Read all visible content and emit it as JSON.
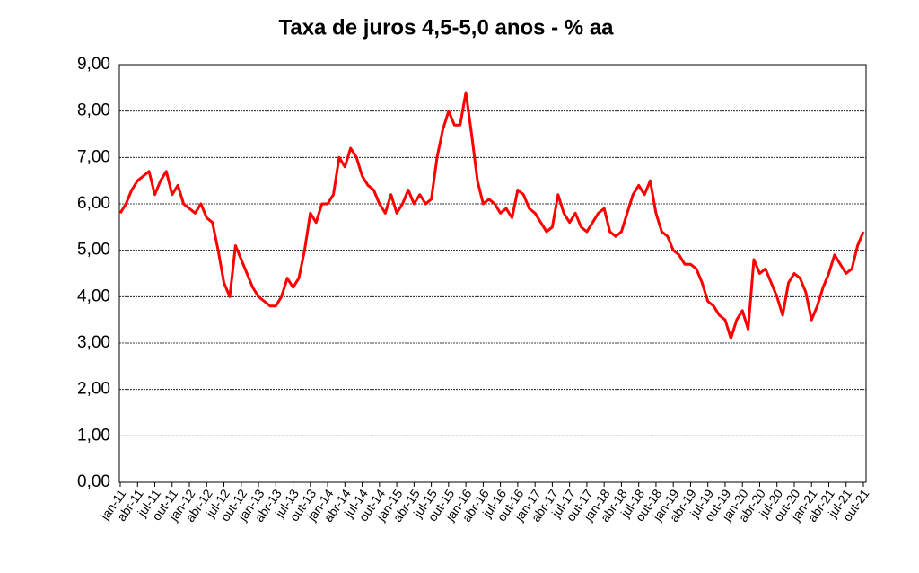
{
  "chart_data": {
    "type": "line",
    "title": "Taxa de juros 4,5-5,0 anos - % aa",
    "categories": [
      "jan-11",
      null,
      null,
      "abr-11",
      null,
      null,
      "jul-11",
      null,
      null,
      "out-11",
      null,
      null,
      "jan-12",
      null,
      null,
      "abr-12",
      null,
      null,
      "jul-12",
      null,
      null,
      "out-12",
      null,
      null,
      "jan-13",
      null,
      null,
      "abr-13",
      null,
      null,
      "jul-13",
      null,
      null,
      "out-13",
      null,
      null,
      "jan-14",
      null,
      null,
      "abr-14",
      null,
      null,
      "jul-14",
      null,
      null,
      "out-14",
      null,
      null,
      "jan-15",
      null,
      null,
      "abr-15",
      null,
      null,
      "jul-15",
      null,
      null,
      "out-15",
      null,
      null,
      "jan-16",
      null,
      null,
      "abr-16",
      null,
      null,
      "jul-16",
      null,
      null,
      "out-16",
      null,
      null,
      "jan-17",
      null,
      null,
      "abr-17",
      null,
      null,
      "jul-17",
      null,
      null,
      "out-17",
      null,
      null,
      "jan-18",
      null,
      null,
      "abr-18",
      null,
      null,
      "jul-18",
      null,
      null,
      "out-18",
      null,
      null,
      "jan-19",
      null,
      null,
      "abr-19",
      null,
      null,
      "jul-19",
      null,
      null,
      "out-19",
      null,
      null,
      "jan-20",
      null,
      null,
      "abr-20",
      null,
      null,
      "jul-20",
      null,
      null,
      "out-20",
      null,
      null,
      "jan-21",
      null,
      null,
      "abr-21",
      null,
      null,
      "jul-21",
      null,
      null,
      "out-21"
    ],
    "series": [
      {
        "color": "#ff0000",
        "values": [
          5.8,
          6.0,
          6.3,
          6.5,
          6.6,
          6.7,
          6.2,
          6.5,
          6.7,
          6.2,
          6.4,
          6.0,
          5.9,
          5.8,
          6.0,
          5.7,
          5.6,
          5.0,
          4.3,
          4.0,
          5.1,
          4.8,
          4.5,
          4.2,
          4.0,
          3.9,
          3.8,
          3.8,
          4.0,
          4.4,
          4.2,
          4.4,
          5.0,
          5.8,
          5.6,
          6.0,
          6.0,
          6.2,
          7.0,
          6.8,
          7.2,
          7.0,
          6.6,
          6.4,
          6.3,
          6.0,
          5.8,
          6.2,
          5.8,
          6.0,
          6.3,
          6.0,
          6.2,
          6.0,
          6.1,
          7.0,
          7.6,
          8.0,
          7.7,
          7.7,
          8.4,
          7.5,
          6.5,
          6.0,
          6.1,
          6.0,
          5.8,
          5.9,
          5.7,
          6.3,
          6.2,
          5.9,
          5.8,
          5.6,
          5.4,
          5.5,
          6.2,
          5.8,
          5.6,
          5.8,
          5.5,
          5.4,
          5.6,
          5.8,
          5.9,
          5.4,
          5.3,
          5.4,
          5.8,
          6.2,
          6.4,
          6.2,
          6.5,
          5.8,
          5.4,
          5.3,
          5.0,
          4.9,
          4.7,
          4.7,
          4.6,
          4.3,
          3.9,
          3.8,
          3.6,
          3.5,
          3.1,
          3.5,
          3.7,
          3.3,
          4.8,
          4.5,
          4.6,
          4.3,
          4.0,
          3.6,
          4.3,
          4.5,
          4.4,
          4.1,
          3.5,
          3.8,
          4.2,
          4.5,
          4.9,
          4.7,
          4.5,
          4.6,
          5.1,
          5.4
        ]
      }
    ],
    "ylim": [
      0,
      9
    ],
    "yticks": [
      {
        "value": 0,
        "label": "0,00"
      },
      {
        "value": 1,
        "label": "1,00"
      },
      {
        "value": 2,
        "label": "2,00"
      },
      {
        "value": 3,
        "label": "3,00"
      },
      {
        "value": 4,
        "label": "4,00"
      },
      {
        "value": 5,
        "label": "5,00"
      },
      {
        "value": 6,
        "label": "6,00"
      },
      {
        "value": 7,
        "label": "7,00"
      },
      {
        "value": 8,
        "label": "8,00"
      },
      {
        "value": 9,
        "label": "9,00"
      }
    ],
    "grid": true
  }
}
